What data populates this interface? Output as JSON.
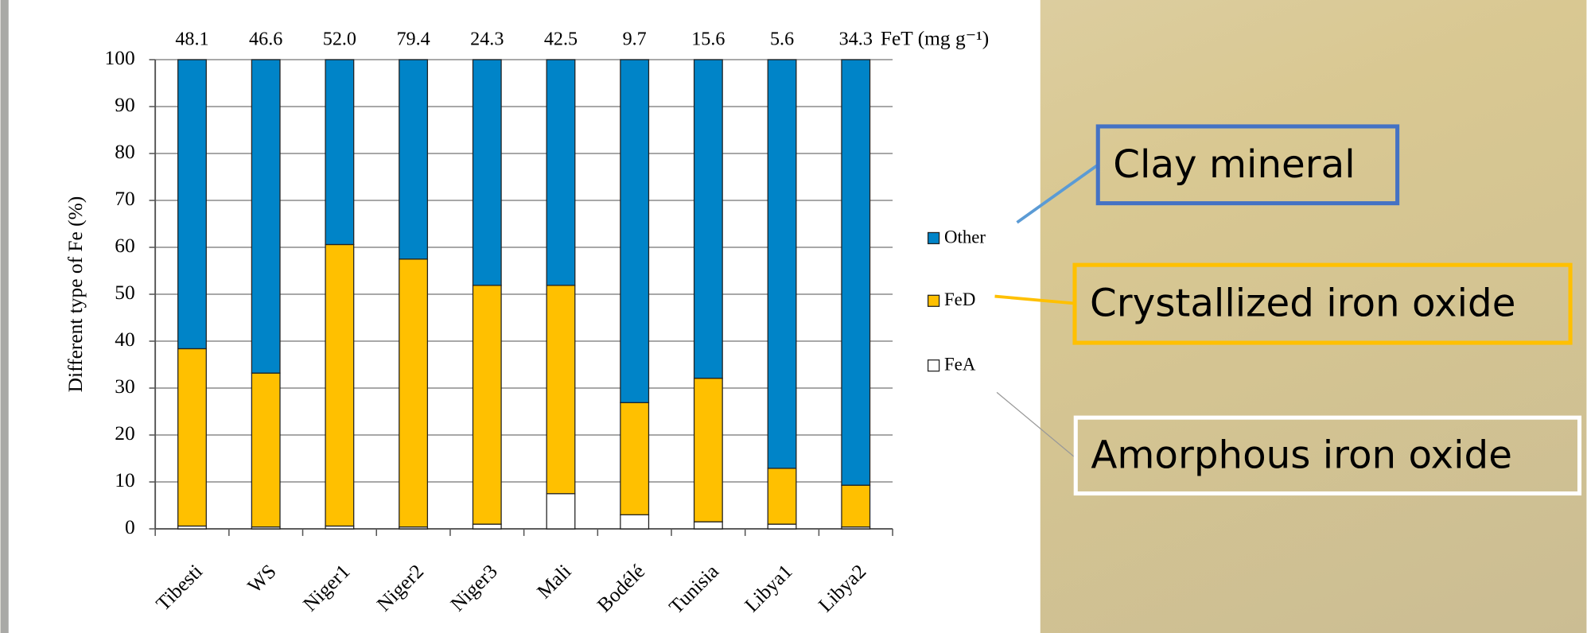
{
  "chart_data": {
    "type": "stacked-bar",
    "ylabel": "Different type of Fe (%)",
    "categories": [
      "Tibesti",
      "WS",
      "Niger1",
      "Niger2",
      "Niger3",
      "Mali",
      "Bodélé",
      "Tunisia",
      "Libya1",
      "Libya2"
    ],
    "series": [
      {
        "name": "FeA",
        "color": "#ffffff",
        "values": [
          0.6,
          0.4,
          0.6,
          0.4,
          1.0,
          7.5,
          3.0,
          1.5,
          1.0,
          0.4
        ]
      },
      {
        "name": "FeD",
        "color": "#ffc000",
        "values": [
          37.8,
          32.8,
          60.0,
          57.1,
          50.9,
          44.4,
          23.9,
          30.6,
          11.9,
          8.9
        ]
      },
      {
        "name": "Other",
        "color": "#0084c8",
        "values": [
          61.6,
          66.8,
          39.4,
          42.5,
          48.1,
          48.1,
          73.1,
          67.9,
          87.1,
          90.7
        ]
      }
    ],
    "fet": {
      "title": "FeT  (mg g⁻¹)",
      "values": [
        48.1,
        46.6,
        52.0,
        79.4,
        24.3,
        42.5,
        9.7,
        15.6,
        5.6,
        34.3
      ],
      "value_labels": [
        "48.1",
        "46.6",
        "52.0",
        "79.4",
        "24.3",
        "42.5",
        "9.7",
        "15.6",
        "5.6",
        "34.3"
      ]
    },
    "ylim": [
      0,
      100
    ],
    "yticks": [
      0,
      10,
      20,
      30,
      40,
      50,
      60,
      70,
      80,
      90,
      100
    ],
    "grid": true,
    "legend": "right",
    "annotations": [
      {
        "text": "Clay mineral",
        "color": "#4472c4"
      },
      {
        "text": "Crystallized iron oxide",
        "color": "#ffc000"
      },
      {
        "text": "Amorphous iron oxide",
        "color": "#ffffff"
      }
    ]
  }
}
